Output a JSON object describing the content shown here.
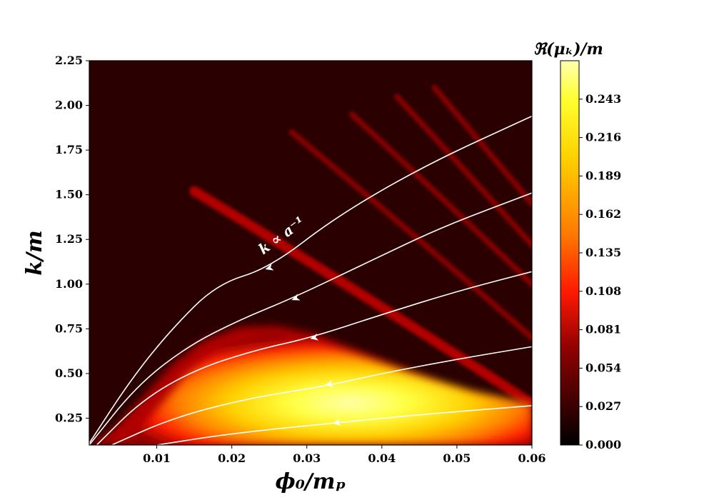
{
  "chart_data": {
    "type": "heatmap",
    "title": "",
    "xlabel": "ϕ₀/mₚ",
    "ylabel": "k/m",
    "xlim": [
      0.001,
      0.06
    ],
    "ylim": [
      0.1,
      2.25
    ],
    "x_ticks": [
      0.01,
      0.02,
      0.03,
      0.04,
      0.05,
      0.06
    ],
    "x_tick_labels": [
      "0.01",
      "0.02",
      "0.03",
      "0.04",
      "0.05",
      "0.06"
    ],
    "y_ticks": [
      0.25,
      0.5,
      0.75,
      1.0,
      1.25,
      1.5,
      1.75,
      2.0,
      2.25
    ],
    "y_tick_labels": [
      "0.25",
      "0.50",
      "0.75",
      "1.00",
      "1.25",
      "1.50",
      "1.75",
      "2.00",
      "2.25"
    ],
    "colorbar": {
      "label": "ℜ(μₖ)/m",
      "range": [
        0.0,
        0.27
      ],
      "ticks": [
        0.0,
        0.027,
        0.054,
        0.081,
        0.108,
        0.135,
        0.162,
        0.189,
        0.216,
        0.243
      ],
      "tick_labels": [
        "0.000",
        "0.027",
        "0.054",
        "0.081",
        "0.108",
        "0.135",
        "0.162",
        "0.189",
        "0.216",
        "0.243"
      ],
      "colormap": "hot"
    },
    "colormap_stops": [
      "#000000",
      "#2a0000",
      "#8b0000",
      "#ff0000",
      "#ff8000",
      "#ffff00",
      "#ffffff"
    ],
    "instability_bands": [
      {
        "name": "main",
        "x_range": [
          0.001,
          0.06
        ],
        "peak_k": [
          0.1,
          0.76
        ],
        "peak_value": 0.26
      },
      {
        "name": "band-2",
        "from": [
          0.015,
          1.52
        ],
        "to": [
          0.06,
          0.33
        ],
        "peak_value": 0.12
      },
      {
        "name": "band-3",
        "from": [
          0.028,
          1.85
        ],
        "to": [
          0.06,
          0.7
        ],
        "peak_value": 0.09
      },
      {
        "name": "band-4",
        "from": [
          0.036,
          1.95
        ],
        "to": [
          0.06,
          1.0
        ],
        "peak_value": 0.07
      },
      {
        "name": "band-5",
        "from": [
          0.042,
          2.05
        ],
        "to": [
          0.06,
          1.22
        ],
        "peak_value": 0.06
      },
      {
        "name": "band-6",
        "from": [
          0.047,
          2.1
        ],
        "to": [
          0.06,
          1.45
        ],
        "peak_value": 0.05
      }
    ],
    "flow_lines": [
      {
        "name": "line-1",
        "points": [
          [
            0.001,
            0.11
          ],
          [
            0.0066,
            0.47
          ],
          [
            0.012,
            0.75
          ],
          [
            0.018,
            1.0
          ],
          [
            0.025,
            1.09
          ],
          [
            0.034,
            1.38
          ],
          [
            0.046,
            1.67
          ],
          [
            0.06,
            1.94
          ]
        ],
        "arrow_at": [
          0.025,
          1.09
        ]
      },
      {
        "name": "line-2",
        "points": [
          [
            0.001,
            0.1
          ],
          [
            0.0073,
            0.43
          ],
          [
            0.014,
            0.65
          ],
          [
            0.021,
            0.8
          ],
          [
            0.028,
            0.92
          ],
          [
            0.038,
            1.12
          ],
          [
            0.048,
            1.32
          ],
          [
            0.06,
            1.51
          ]
        ],
        "arrow_at": [
          0.0285,
          0.92
        ]
      },
      {
        "name": "line-3",
        "points": [
          [
            0.002,
            0.1
          ],
          [
            0.008,
            0.35
          ],
          [
            0.015,
            0.52
          ],
          [
            0.023,
            0.63
          ],
          [
            0.0305,
            0.7
          ],
          [
            0.04,
            0.83
          ],
          [
            0.05,
            0.96
          ],
          [
            0.06,
            1.07
          ]
        ],
        "arrow_at": [
          0.031,
          0.7
        ]
      },
      {
        "name": "line-4",
        "points": [
          [
            0.004,
            0.1
          ],
          [
            0.012,
            0.25
          ],
          [
            0.022,
            0.36
          ],
          [
            0.0325,
            0.43
          ],
          [
            0.04,
            0.5
          ],
          [
            0.05,
            0.58
          ],
          [
            0.06,
            0.65
          ]
        ],
        "arrow_at": [
          0.033,
          0.44
        ]
      },
      {
        "name": "line-5",
        "points": [
          [
            0.01,
            0.1
          ],
          [
            0.02,
            0.165
          ],
          [
            0.034,
            0.225
          ],
          [
            0.045,
            0.27
          ],
          [
            0.06,
            0.32
          ]
        ],
        "arrow_at": [
          0.034,
          0.225
        ]
      }
    ],
    "annotations": [
      {
        "text": "k ∝ a⁻¹",
        "x": 0.027,
        "y": 1.25,
        "rotation_deg": -36
      }
    ]
  }
}
